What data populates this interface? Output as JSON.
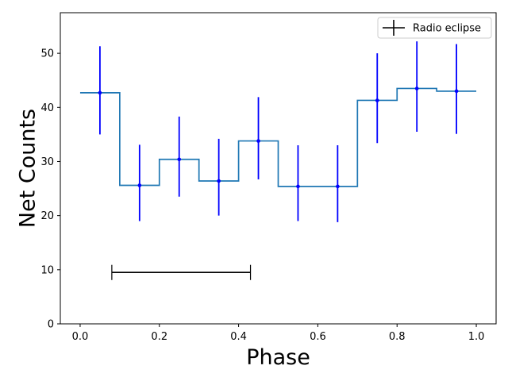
{
  "chart_data": {
    "type": "step",
    "xlabel": "Phase",
    "ylabel": "Net Counts",
    "xlim": [
      -0.05,
      1.05
    ],
    "ylim": [
      0,
      57.5
    ],
    "xticks": [
      "0.0",
      "0.2",
      "0.4",
      "0.6",
      "0.8",
      "1.0"
    ],
    "xtick_values": [
      0.0,
      0.2,
      0.4,
      0.6,
      0.8,
      1.0
    ],
    "yticks": [
      "0",
      "10",
      "20",
      "30",
      "40",
      "50"
    ],
    "ytick_values": [
      0,
      10,
      20,
      30,
      40,
      50
    ],
    "grid": false,
    "legend_position": "upper-right",
    "step_series": {
      "color": "#1f77b4",
      "bin_edges": [
        0.0,
        0.1,
        0.2,
        0.3,
        0.4,
        0.5,
        0.6,
        0.7,
        0.8,
        0.9,
        1.0
      ],
      "values": [
        42.7,
        25.6,
        30.4,
        26.4,
        33.8,
        25.4,
        25.4,
        41.3,
        43.5,
        43.0
      ]
    },
    "error_series": {
      "color": "#0000ff",
      "x": [
        0.05,
        0.15,
        0.25,
        0.35,
        0.45,
        0.55,
        0.65,
        0.75,
        0.85,
        0.95
      ],
      "y": [
        42.7,
        25.6,
        30.4,
        26.4,
        33.8,
        25.4,
        25.4,
        41.3,
        43.5,
        43.0
      ],
      "yerr_low": [
        7.7,
        6.6,
        6.9,
        6.4,
        7.1,
        6.4,
        6.6,
        7.9,
        8.0,
        7.9
      ],
      "yerr_high": [
        8.6,
        7.5,
        7.9,
        7.8,
        8.1,
        7.6,
        7.6,
        8.7,
        8.7,
        8.7
      ]
    },
    "eclipse_series": {
      "name": "Radio eclipse",
      "color": "#000000",
      "x_start": 0.08,
      "x_end": 0.43,
      "y": 9.5,
      "cap_half_height": 1.4
    }
  }
}
